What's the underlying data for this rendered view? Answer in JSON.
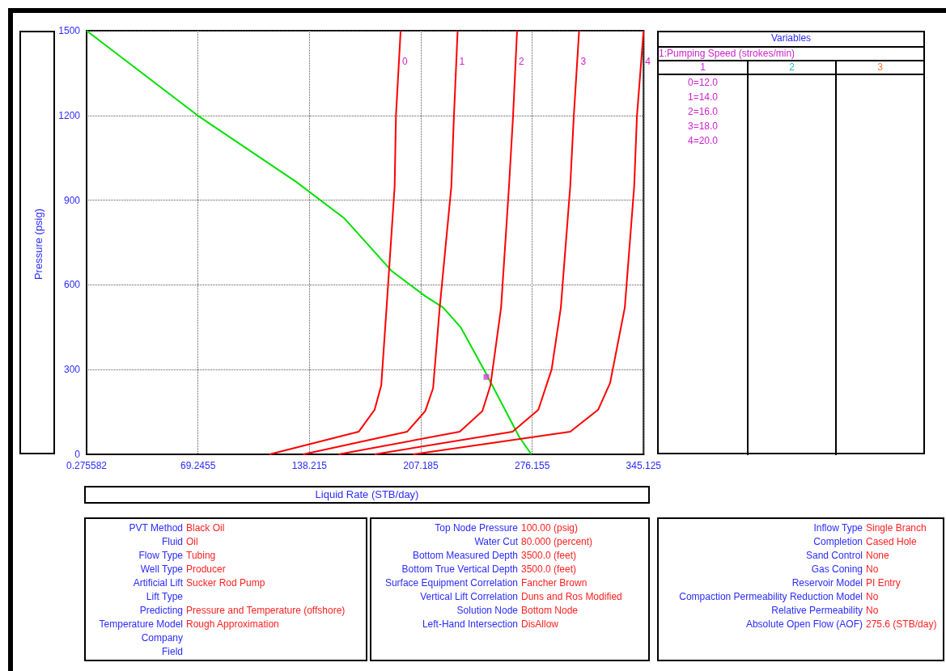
{
  "chart_data": [
    {
      "type": "line",
      "xlabel": "Liquid Rate  (STB/day)",
      "ylabel": "Pressure  (psig)",
      "xlim": [
        0.275582,
        345.125
      ],
      "ylim": [
        0,
        1500
      ],
      "xticks": [
        0.275582,
        69.2455,
        138.215,
        207.185,
        276.155,
        345.125
      ],
      "yticks": [
        0,
        300,
        600,
        900,
        1200,
        1500
      ],
      "grid": true,
      "line_style": "solid",
      "series": [
        {
          "color": "#00e000",
          "x": [
            0.28,
            69,
            130,
            160,
            189,
            210,
            221,
            232,
            248,
            268,
            275.6
          ],
          "values": [
            1500,
            1200,
            965,
            835,
            650,
            560,
            520,
            449,
            282,
            63,
            0
          ]
        },
        {
          "name": "0",
          "color": "#ff0000",
          "x": [
            113.5,
            168.7,
            178.6,
            182.7,
            186,
            191,
            191.8,
            194.7
          ],
          "values": [
            0,
            80,
            158,
            244,
            520,
            949,
            1197,
            1500
          ]
        },
        {
          "name": "1",
          "color": "#ff0000",
          "x": [
            134.4,
            198.7,
            209.9,
            214.8,
            218.9,
            226.1,
            227.7,
            230
          ],
          "values": [
            0,
            80,
            153,
            234,
            520,
            949,
            1197,
            1500
          ]
        },
        {
          "name": "2",
          "color": "#ff0000",
          "x": [
            156.3,
            231.3,
            245.3,
            250.3,
            256.9,
            261.8,
            264.3,
            266.8
          ],
          "values": [
            0,
            80,
            153,
            244,
            520,
            949,
            1197,
            1500
          ]
        },
        {
          "name": "3",
          "color": "#ff0000",
          "x": [
            178.6,
            264,
            280,
            288.2,
            293.9,
            299.7,
            301.9,
            305.2
          ],
          "values": [
            0,
            80,
            158,
            301,
            520,
            949,
            1197,
            1500
          ]
        },
        {
          "name": "4",
          "color": "#ff0000",
          "x": [
            202.5,
            299.7,
            317,
            324.4,
            333.5,
            339.3,
            341,
            345.1
          ],
          "values": [
            0,
            80,
            158,
            253,
            520,
            949,
            1197,
            1500
          ]
        },
        {
          "type": "scatter",
          "marker": "square",
          "color": "#cc44cc",
          "x": [
            247.8
          ],
          "values": [
            274
          ]
        }
      ]
    },
    {
      "type": "other",
      "title": "Variables",
      "subtitle": "1:Pumping Speed (strokes/min)",
      "annotations": [
        "1",
        "2",
        "3",
        "0=12.0",
        "1=14.0",
        "2=16.0",
        "3=18.0",
        "4=20.0"
      ]
    },
    {
      "type": "other",
      "annotations": [
        "PVT Method",
        "Black Oil",
        "Fluid",
        "Oil",
        "Flow Type",
        "Tubing",
        "Well Type",
        "Producer",
        "Artificial Lift",
        "Sucker Rod Pump",
        "Lift Type",
        null,
        "Predicting",
        "Pressure and Temperature (offshore)",
        "Temperature Model",
        "Rough Approximation",
        "Company",
        null,
        "Field",
        null
      ]
    },
    {
      "type": "other",
      "annotations": [
        "Top Node Pressure",
        "100.00 (psig)",
        "Water Cut",
        "80.000 (percent)",
        "Bottom Measured Depth",
        "3500.0 (feet)",
        "Bottom True Vertical Depth",
        "3500.0 (feet)",
        "Surface Equipment Correlation",
        "Fancher Brown",
        "Vertical Lift Correlation",
        "Duns and Ros Modified",
        "Solution Node",
        "Bottom Node",
        "Left-Hand Intersection",
        "DisAllow"
      ]
    },
    {
      "type": "other",
      "annotations": [
        "Inflow Type",
        "Single Branch",
        "Completion",
        "Cased Hole",
        "Sand Control",
        "None",
        "Gas Coning",
        "No",
        "Reservoir Model",
        "PI Entry",
        "Compaction Permeability Reduction Model",
        "No",
        "Relative Permeability",
        "No",
        "Absolute Open Flow (AOF)",
        "275.6 (STB/day)"
      ]
    }
  ]
}
